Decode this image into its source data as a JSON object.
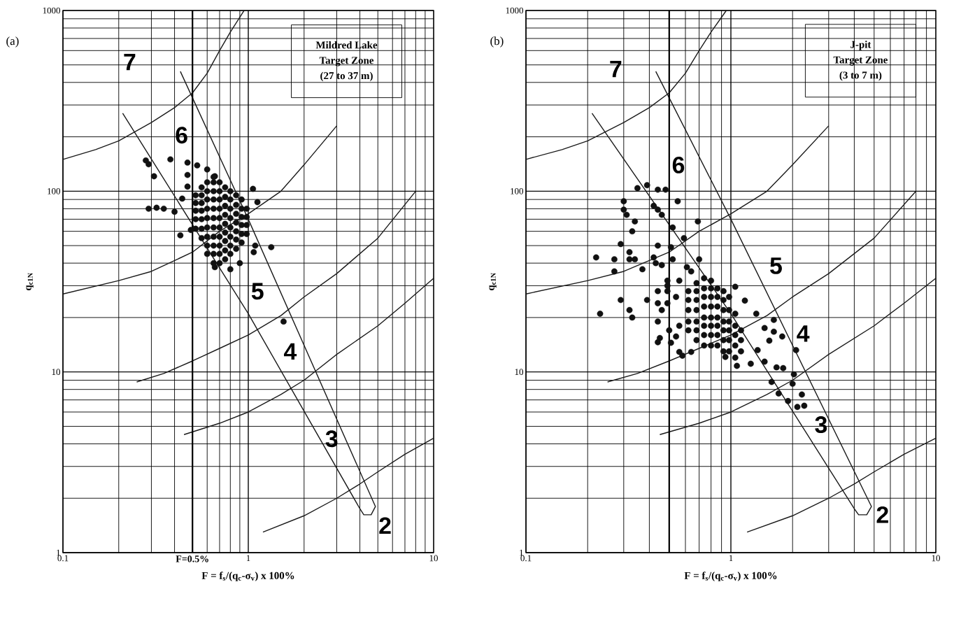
{
  "chart_data": [
    {
      "type": "scatter",
      "title": "(a)",
      "xlabel": "F = f$_{s}$/(q$_{c}$-σ$_{v}$) x 100%",
      "ylabel": "q$_{c1N}$",
      "xlim": [
        0.1,
        10
      ],
      "ylim": [
        1,
        1000
      ],
      "xticks": [
        0.1,
        1,
        10
      ],
      "yticks": [
        1,
        10,
        100,
        1000
      ],
      "log": "xy",
      "grid": true,
      "marker": "circle",
      "annotations": [
        "Mildred Lake",
        "Target Zone",
        "(27 to 37 m)",
        "7",
        "6",
        "5",
        "4",
        "3",
        "2"
      ],
      "series": [
        {
          "type": "line",
          "marker": "none",
          "color": "#1a1a1a",
          "x": [
            0.1,
            0.15,
            0.2,
            0.3,
            0.4,
            0.5,
            0.6,
            0.7,
            0.8,
            0.95
          ],
          "values": [
            150,
            170,
            190,
            240,
            290,
            350,
            450,
            600,
            760,
            1000
          ]
        },
        {
          "type": "line",
          "marker": "none",
          "color": "#1a1a1a",
          "x": [
            0.1,
            0.2,
            0.3,
            0.5,
            0.7,
            1,
            1.5,
            2,
            3
          ],
          "values": [
            27,
            32,
            36,
            46,
            60,
            75,
            100,
            140,
            230
          ]
        },
        {
          "type": "line",
          "marker": "none",
          "color": "#1a1a1a",
          "x": [
            0.25,
            0.35,
            0.5,
            0.7,
            1,
            1.5,
            2,
            3,
            5,
            8
          ],
          "values": [
            8.8,
            9.8,
            11.5,
            13.5,
            16,
            20.5,
            26,
            35,
            55,
            100
          ]
        },
        {
          "type": "line",
          "marker": "none",
          "color": "#1a1a1a",
          "x": [
            0.45,
            0.7,
            1,
            1.5,
            2,
            3,
            5,
            7,
            10
          ],
          "values": [
            4.5,
            5.2,
            6,
            7.5,
            9,
            12.5,
            18,
            24,
            33
          ]
        },
        {
          "type": "line",
          "marker": "none",
          "color": "#1a1a1a",
          "x": [
            1.2,
            2,
            3,
            4,
            5,
            7,
            10
          ],
          "values": [
            1.3,
            1.6,
            2,
            2.4,
            2.8,
            3.5,
            4.3
          ]
        },
        {
          "type": "line",
          "marker": "none",
          "color": "#1a1a1a",
          "x": [
            0.21,
            1,
            4.0,
            4.2,
            4.6,
            4.85,
            1,
            0.43
          ],
          "values": [
            270,
            21,
            1.75,
            1.62,
            1.62,
            1.8,
            70,
            460
          ]
        },
        {
          "type": "line",
          "marker": "none",
          "name": "F=0.5%",
          "color": "#000000",
          "x": [
            0.5,
            0.5
          ],
          "values": [
            1,
            1000
          ]
        },
        {
          "color": "#111111",
          "x": [
            0.28,
            0.29,
            0.31,
            0.38,
            0.47,
            0.53,
            0.47,
            0.47,
            0.29,
            0.32,
            0.35,
            0.4,
            0.44,
            0.43,
            0.49,
            1.09,
            1.33,
            1.06,
            1.12,
            0.6,
            0.66,
            0.66,
            0.8,
            0.9,
            1.07,
            1.55,
            0.52,
            0.52,
            0.52,
            0.52,
            0.52,
            0.56,
            0.56,
            0.56,
            0.56,
            0.56,
            0.56,
            0.56,
            0.6,
            0.6,
            0.6,
            0.6,
            0.6,
            0.6,
            0.6,
            0.6,
            0.6,
            0.65,
            0.65,
            0.65,
            0.65,
            0.65,
            0.65,
            0.65,
            0.65,
            0.65,
            0.65,
            0.65,
            0.7,
            0.7,
            0.7,
            0.7,
            0.7,
            0.7,
            0.7,
            0.7,
            0.7,
            0.7,
            0.75,
            0.75,
            0.75,
            0.75,
            0.75,
            0.75,
            0.75,
            0.75,
            0.75,
            0.8,
            0.8,
            0.8,
            0.8,
            0.8,
            0.8,
            0.8,
            0.8,
            0.86,
            0.86,
            0.86,
            0.86,
            0.86,
            0.86,
            0.86,
            0.92,
            0.92,
            0.92,
            0.92,
            0.92,
            0.92,
            0.98,
            0.98,
            0.98,
            0.98
          ],
          "values": [
            148,
            141,
            121,
            150,
            144,
            139,
            123,
            106,
            80,
            81,
            80,
            77,
            91,
            57,
            61,
            50,
            49,
            103,
            87,
            132,
            121,
            38,
            37,
            40,
            46,
            19,
            62,
            70,
            78,
            86,
            95,
            55,
            62,
            70,
            78,
            86,
            95,
            105,
            45,
            50,
            56,
            63,
            71,
            80,
            90,
            100,
            112,
            40,
            45,
            50,
            56,
            63,
            71,
            80,
            90,
            100,
            112,
            120,
            40,
            45,
            50,
            56,
            63,
            71,
            80,
            90,
            100,
            112,
            42,
            47,
            53,
            59,
            66,
            74,
            83,
            93,
            105,
            45,
            50,
            56,
            63,
            71,
            80,
            90,
            100,
            48,
            54,
            60,
            67,
            75,
            84,
            95,
            52,
            58,
            65,
            72,
            80,
            90,
            58,
            65,
            72,
            80
          ]
        }
      ]
    },
    {
      "type": "scatter",
      "title": "(b)",
      "xlabel": "F = f$_{s}$/(q$_{c}$-σ$_{v}$) x 100%",
      "ylabel": "q$_{c1N}$",
      "xlim": [
        0.1,
        10
      ],
      "ylim": [
        1,
        1000
      ],
      "xticks": [
        0.1,
        1,
        10
      ],
      "yticks": [
        1,
        10,
        100,
        1000
      ],
      "log": "xy",
      "grid": true,
      "marker": "circle",
      "annotations": [
        "J-pit",
        "Target Zone",
        "(3 to 7 m)",
        "7",
        "6",
        "5",
        "4",
        "3",
        "2"
      ],
      "series": [
        {
          "type": "line",
          "marker": "none",
          "color": "#1a1a1a",
          "x": [
            0.1,
            0.15,
            0.2,
            0.3,
            0.4,
            0.5,
            0.6,
            0.7,
            0.8,
            0.95
          ],
          "values": [
            150,
            170,
            190,
            240,
            290,
            350,
            450,
            600,
            760,
            1000
          ]
        },
        {
          "type": "line",
          "marker": "none",
          "color": "#1a1a1a",
          "x": [
            0.1,
            0.2,
            0.3,
            0.5,
            0.7,
            1,
            1.5,
            2,
            3
          ],
          "values": [
            27,
            32,
            36,
            46,
            60,
            75,
            100,
            140,
            230
          ]
        },
        {
          "type": "line",
          "marker": "none",
          "color": "#1a1a1a",
          "x": [
            0.25,
            0.35,
            0.5,
            0.7,
            1,
            1.5,
            2,
            3,
            5,
            8
          ],
          "values": [
            8.8,
            9.8,
            11.5,
            13.5,
            16,
            20.5,
            26,
            35,
            55,
            100
          ]
        },
        {
          "type": "line",
          "marker": "none",
          "color": "#1a1a1a",
          "x": [
            0.45,
            0.7,
            1,
            1.5,
            2,
            3,
            5,
            7,
            10
          ],
          "values": [
            4.5,
            5.2,
            6,
            7.5,
            9,
            12.5,
            18,
            24,
            33
          ]
        },
        {
          "type": "line",
          "marker": "none",
          "color": "#1a1a1a",
          "x": [
            1.2,
            2,
            3,
            4,
            5,
            7,
            10
          ],
          "values": [
            1.3,
            1.6,
            2,
            2.4,
            2.8,
            3.5,
            4.3
          ]
        },
        {
          "type": "line",
          "marker": "none",
          "color": "#1a1a1a",
          "x": [
            0.21,
            1,
            4.0,
            4.2,
            4.6,
            4.85,
            1,
            0.43
          ],
          "values": [
            270,
            21,
            1.75,
            1.62,
            1.62,
            1.8,
            70,
            460
          ]
        },
        {
          "type": "line",
          "marker": "none",
          "color": "#000000",
          "x": [
            0.5,
            0.5
          ],
          "values": [
            1,
            1000
          ]
        },
        {
          "color": "#111111",
          "x": [
            0.22,
            0.23,
            0.27,
            0.27,
            0.29,
            0.29,
            0.3,
            0.3,
            0.31,
            0.34,
            0.33,
            0.32,
            0.32,
            0.34,
            0.32,
            0.33,
            0.35,
            0.39,
            0.37,
            0.39,
            0.42,
            0.43,
            0.42,
            0.44,
            0.46,
            0.44,
            0.48,
            0.44,
            0.46,
            0.49,
            0.49,
            0.44,
            0.49,
            0.49,
            0.44,
            0.46,
            0.44,
            0.45,
            0.44,
            0.5,
            0.51,
            0.55,
            0.51,
            0.52,
            0.52,
            0.59,
            0.56,
            0.54,
            0.56,
            0.54,
            0.56,
            0.61,
            0.64,
            0.69,
            0.7,
            0.58,
            0.64,
            0.94,
            1.07,
            1.25,
            1.35,
            1.46,
            1.67,
            1.8,
            2.03,
            2.0,
            1.58,
            1.71,
            1.9,
            2.11,
            2.22,
            2.28,
            1.33,
            1.46,
            1.62,
            1.62,
            1.78,
            1.54,
            2.08,
            1.17,
            1.05,
            0.62,
            0.62,
            0.62,
            0.62,
            0.62,
            0.68,
            0.68,
            0.68,
            0.68,
            0.68,
            0.68,
            0.68,
            0.74,
            0.74,
            0.74,
            0.74,
            0.74,
            0.74,
            0.74,
            0.74,
            0.8,
            0.8,
            0.8,
            0.8,
            0.8,
            0.8,
            0.8,
            0.8,
            0.86,
            0.86,
            0.86,
            0.86,
            0.86,
            0.86,
            0.86,
            0.92,
            0.92,
            0.92,
            0.92,
            0.92,
            0.92,
            0.92,
            0.98,
            0.98,
            0.98,
            0.98,
            0.98,
            0.98,
            1.05,
            1.05,
            1.05,
            1.05,
            1.05,
            1.12,
            1.12,
            1.12
          ],
          "values": [
            43,
            21,
            42,
            36,
            51,
            25,
            88,
            79,
            74,
            68,
            60,
            46,
            42,
            42,
            22,
            20,
            104,
            108,
            37,
            25,
            43,
            40,
            83,
            79,
            74,
            102,
            102,
            50,
            39,
            32,
            30,
            28,
            28,
            24,
            24,
            22,
            19,
            15.4,
            14.6,
            17,
            14.5,
            88,
            49,
            63,
            42,
            55,
            32,
            26,
            18,
            15.7,
            12.9,
            38,
            36,
            68,
            42,
            12.3,
            12.9,
            12.1,
            10.8,
            11.1,
            13.2,
            11.4,
            10.6,
            10.5,
            9.7,
            8.6,
            8.8,
            7.6,
            6.9,
            6.4,
            7.5,
            6.5,
            21,
            17.5,
            19.4,
            16.7,
            15.7,
            14.9,
            13.2,
            24.8,
            29.6,
            17,
            19,
            22,
            25,
            28,
            15,
            17,
            19,
            22,
            25,
            28,
            31,
            14,
            16,
            18,
            20,
            23,
            26,
            29,
            33,
            14,
            16,
            18,
            20,
            23,
            26,
            29,
            32,
            14,
            16,
            18,
            20,
            23,
            26,
            29,
            13,
            15,
            17,
            19,
            22,
            25,
            28,
            13,
            15,
            17,
            19,
            22,
            26,
            12,
            14,
            16,
            18,
            21,
            13,
            15,
            17
          ]
        }
      ]
    }
  ]
}
